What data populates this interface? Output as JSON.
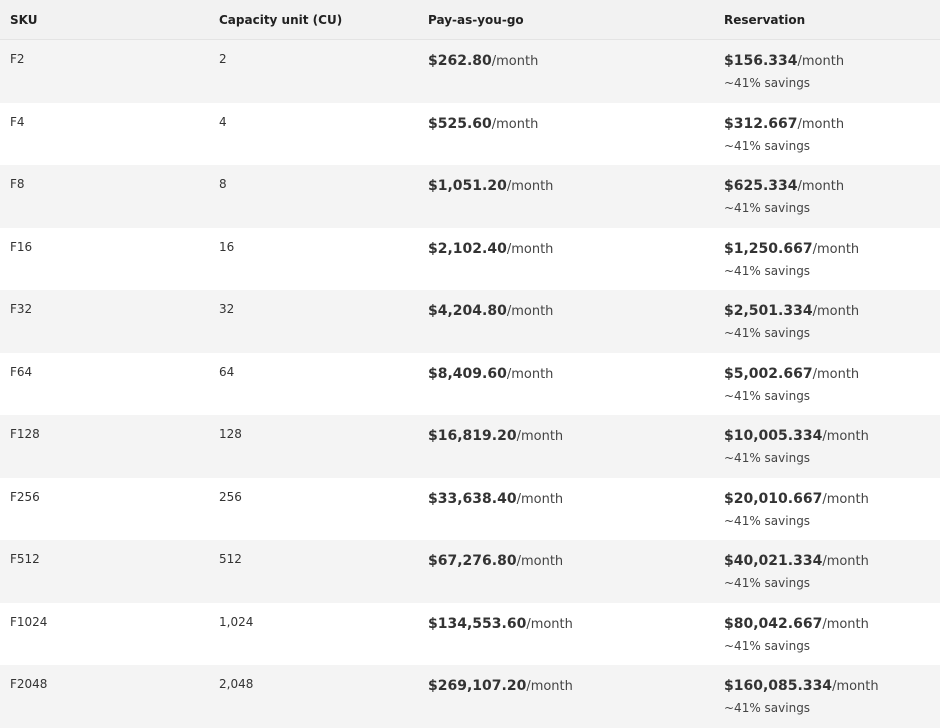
{
  "header": {
    "sku": "SKU",
    "capacity": "Capacity unit (CU)",
    "payg": "Pay-as-you-go",
    "reservation": "Reservation"
  },
  "rows": [
    {
      "sku": "F2",
      "cu": "2",
      "payg_price": "$262.80",
      "payg_unit": "/month",
      "res_price": "$156.334",
      "res_unit": "/month",
      "savings": "~41% savings"
    },
    {
      "sku": "F4",
      "cu": "4",
      "payg_price": "$525.60",
      "payg_unit": "/month",
      "res_price": "$312.667",
      "res_unit": "/month",
      "savings": "~41% savings"
    },
    {
      "sku": "F8",
      "cu": "8",
      "payg_price": "$1,051.20",
      "payg_unit": "/month",
      "res_price": "$625.334",
      "res_unit": "/month",
      "savings": "~41% savings"
    },
    {
      "sku": "F16",
      "cu": "16",
      "payg_price": "$2,102.40",
      "payg_unit": "/month",
      "res_price": "$1,250.667",
      "res_unit": "/month",
      "savings": "~41% savings"
    },
    {
      "sku": "F32",
      "cu": "32",
      "payg_price": "$4,204.80",
      "payg_unit": "/month",
      "res_price": "$2,501.334",
      "res_unit": "/month",
      "savings": "~41% savings"
    },
    {
      "sku": "F64",
      "cu": "64",
      "payg_price": "$8,409.60",
      "payg_unit": "/month",
      "res_price": "$5,002.667",
      "res_unit": "/month",
      "savings": "~41% savings"
    },
    {
      "sku": "F128",
      "cu": "128",
      "payg_price": "$16,819.20",
      "payg_unit": "/month",
      "res_price": "$10,005.334",
      "res_unit": "/month",
      "savings": "~41% savings"
    },
    {
      "sku": "F256",
      "cu": "256",
      "payg_price": "$33,638.40",
      "payg_unit": "/month",
      "res_price": "$20,010.667",
      "res_unit": "/month",
      "savings": "~41% savings"
    },
    {
      "sku": "F512",
      "cu": "512",
      "payg_price": "$67,276.80",
      "payg_unit": "/month",
      "res_price": "$40,021.334",
      "res_unit": "/month",
      "savings": "~41% savings"
    },
    {
      "sku": "F1024",
      "cu": "1,024",
      "payg_price": "$134,553.60",
      "payg_unit": "/month",
      "res_price": "$80,042.667",
      "res_unit": "/month",
      "savings": "~41% savings"
    },
    {
      "sku": "F2048",
      "cu": "2,048",
      "payg_price": "$269,107.20",
      "payg_unit": "/month",
      "res_price": "$160,085.334",
      "res_unit": "/month",
      "savings": "~41% savings"
    }
  ]
}
